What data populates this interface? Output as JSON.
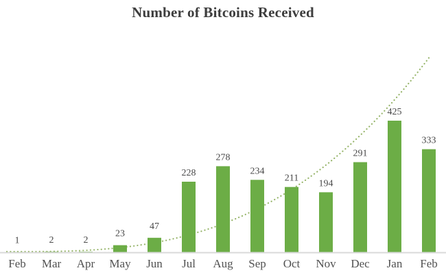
{
  "chart_data": {
    "type": "bar",
    "title": "Number of Bitcoins Received",
    "categories": [
      "Feb",
      "Mar",
      "Apr",
      "May",
      "Jun",
      "Jul",
      "Aug",
      "Sep",
      "Oct",
      "Nov",
      "Dec",
      "Jan",
      "Feb"
    ],
    "values": [
      1,
      2,
      2,
      23,
      47,
      228,
      278,
      234,
      211,
      194,
      291,
      425,
      333
    ],
    "data_labels": [
      1,
      2,
      2,
      23,
      47,
      228,
      278,
      234,
      211,
      194,
      291,
      425,
      333
    ],
    "xlabel": "",
    "ylabel": "",
    "ylim": [
      0,
      430
    ],
    "grid": false,
    "legend": false,
    "y_axis_visible": false,
    "trendline": {
      "type": "exponential",
      "style": "dotted",
      "drawn_behind_bars": true
    },
    "colors": {
      "bar": "#6cad46",
      "trendline": "#97b56b",
      "axis_line": "#d9d9d9",
      "title_text": "#3d3d3d",
      "value_label_text": "#484848",
      "month_label_text": "#515151",
      "background": "#ffffff"
    }
  }
}
